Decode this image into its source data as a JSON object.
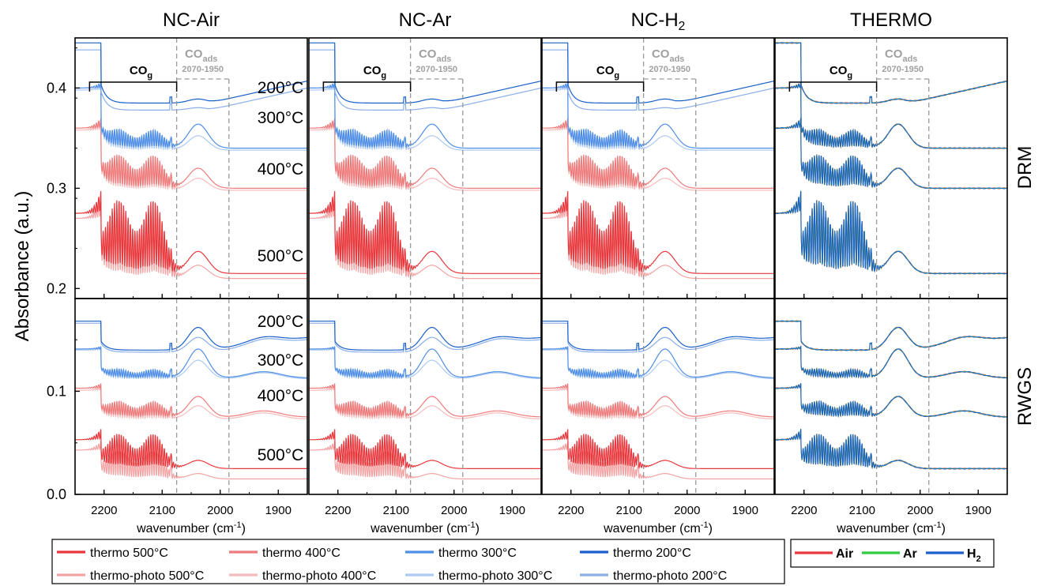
{
  "chart_data": {
    "type": "line",
    "figure": "FTIR spectra grid",
    "ylabel": "Absorbance (a.u.)",
    "xlabel": "wavenumber",
    "xlabel_unit": "(cm",
    "xlabel_sup": "-1",
    "xlabel_close": ")",
    "xlim": [
      2250,
      1850
    ],
    "x_reversed": true,
    "x_ticks": [
      2200,
      2100,
      2000,
      1900
    ],
    "panel_titles": [
      "NC-Air",
      "NC-Ar",
      "NC-H",
      "THERMO"
    ],
    "panel_title_sub": [
      "",
      "",
      "2",
      ""
    ],
    "row_labels": [
      "DRM",
      "RWGS"
    ],
    "rows": [
      {
        "name": "DRM",
        "ylim": [
          0.19,
          0.45
        ],
        "y_ticks": [
          0.2,
          0.3,
          0.4
        ],
        "y_tick_labels": [
          "0.2",
          "0.3",
          "0.4"
        ]
      },
      {
        "name": "RWGS",
        "ylim": [
          0.0,
          0.19
        ],
        "y_ticks": [
          0.0,
          0.1
        ],
        "y_tick_labels": [
          "0.0",
          "0.1"
        ]
      }
    ],
    "temperature_labels": [
      "200°C",
      "300°C",
      "400°C",
      "500°C"
    ],
    "annotations": {
      "co_gas": "CO",
      "co_gas_sub": "g",
      "co_gas_range": [
        2225,
        2075
      ],
      "co_ads": "CO",
      "co_ads_sub": "ads",
      "co_ads_range_text": "2070-1950",
      "co_ads_range": [
        2075,
        1985
      ]
    },
    "baselines": {
      "DRM": {
        "200°C": {
          "thermo": 0.385,
          "thermo-photo": 0.378
        },
        "300°C": {
          "thermo": 0.34,
          "thermo-photo": 0.338
        },
        "400°C": {
          "thermo": 0.3,
          "thermo-photo": 0.298
        },
        "500°C": {
          "thermo": 0.215,
          "thermo-photo": 0.21
        }
      },
      "RWGS": {
        "200°C": {
          "thermo": 0.14,
          "thermo-photo": 0.138
        },
        "300°C": {
          "thermo": 0.113,
          "thermo-photo": 0.112
        },
        "400°C": {
          "thermo": 0.075,
          "thermo-photo": 0.073
        },
        "500°C": {
          "thermo": 0.025,
          "thermo-photo": 0.015
        }
      }
    },
    "series": [
      {
        "name": "thermo 500°C",
        "color": "#e8383d"
      },
      {
        "name": "thermo 400°C",
        "color": "#ee7b7b"
      },
      {
        "name": "thermo 300°C",
        "color": "#4f8ee6"
      },
      {
        "name": "thermo 200°C",
        "color": "#1a5fc9"
      },
      {
        "name": "thermo-photo 500°C",
        "color": "#f3a3a3"
      },
      {
        "name": "thermo-photo 400°C",
        "color": "#f6bcbc"
      },
      {
        "name": "thermo-photo 300°C",
        "color": "#aecaf2"
      },
      {
        "name": "thermo-photo 200°C",
        "color": "#89aee8"
      }
    ],
    "thermo_legend": [
      {
        "name": "Air",
        "color": "#e8383d"
      },
      {
        "name": "Ar",
        "color": "#2ecc40"
      },
      {
        "name": "H",
        "sub": "2",
        "color": "#1a5fc9"
      }
    ]
  }
}
